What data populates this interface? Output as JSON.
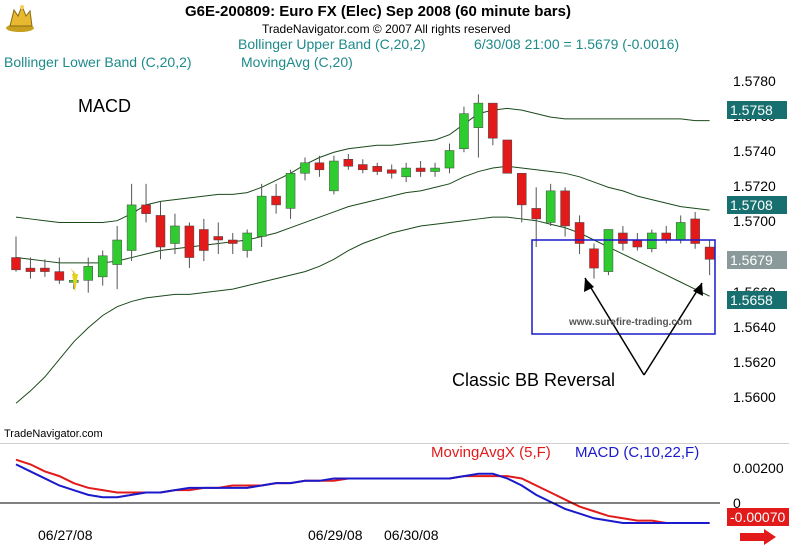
{
  "header": {
    "title": "G6E-200809:  Euro FX (Elec) Sep 2008  (60 minute bars)",
    "copyright": "TradeNavigator.com © 2007 All rights reserved",
    "upper_band_label": "Bollinger Upper Band (C,20,2)",
    "readout": "6/30/08 21:00 = 1.5679 (-0.0016)",
    "lower_band_label": "Bollinger Lower Band (C,20,2)",
    "ma_label": "MovingAvg (C,20)"
  },
  "annotations": {
    "macd_title": "MACD",
    "reversal_label": "Classic BB Reversal",
    "watermark": "www.surefire-trading.com",
    "brand": "TradeNavigator.com"
  },
  "price_tags": {
    "upper": "1.5758",
    "middle": "1.5708",
    "last": "1.5679",
    "lower": "1.5658"
  },
  "macd_panel": {
    "signal_label": "MovingAvgX (5,F)",
    "macd_label": "MACD (C,10,22,F)",
    "axis_top": "0.00200",
    "axis_zero": "0",
    "current_value": "-0.00070"
  },
  "colors": {
    "up": "#2ecc2e",
    "down": "#e21a1a",
    "band": "#1a4a1a",
    "box": "#1a1acc",
    "tag": "#176f6f",
    "signal": "#e21a1a",
    "macd": "#1a1acc"
  },
  "chart_data": {
    "type": "candlestick",
    "y_tick_labels": [
      "1.5780",
      "1.5760",
      "1.5740",
      "1.5720",
      "1.5700",
      "1.5680",
      "1.5660",
      "1.5640",
      "1.5620",
      "1.5600"
    ],
    "ylim": [
      1.5592,
      1.5788
    ],
    "x_tick_labels": [
      "06/27/08",
      "06/29/08",
      "06/30/08"
    ],
    "candles": [
      {
        "o": 1.568,
        "h": 1.5692,
        "l": 1.5672,
        "c": 1.5673
      },
      {
        "o": 1.5674,
        "h": 1.568,
        "l": 1.5668,
        "c": 1.5672
      },
      {
        "o": 1.5674,
        "h": 1.5679,
        "l": 1.5669,
        "c": 1.5672
      },
      {
        "o": 1.5672,
        "h": 1.568,
        "l": 1.5665,
        "c": 1.5667
      },
      {
        "o": 1.5666,
        "h": 1.5672,
        "l": 1.5662,
        "c": 1.5667
      },
      {
        "o": 1.5667,
        "h": 1.568,
        "l": 1.566,
        "c": 1.5675
      },
      {
        "o": 1.5669,
        "h": 1.5684,
        "l": 1.5664,
        "c": 1.5681
      },
      {
        "o": 1.5676,
        "h": 1.5698,
        "l": 1.5662,
        "c": 1.569
      },
      {
        "o": 1.5684,
        "h": 1.5722,
        "l": 1.5678,
        "c": 1.571
      },
      {
        "o": 1.571,
        "h": 1.5722,
        "l": 1.57,
        "c": 1.5705
      },
      {
        "o": 1.5704,
        "h": 1.5712,
        "l": 1.5679,
        "c": 1.5686
      },
      {
        "o": 1.5688,
        "h": 1.5705,
        "l": 1.5682,
        "c": 1.5698
      },
      {
        "o": 1.5698,
        "h": 1.57,
        "l": 1.5674,
        "c": 1.568
      },
      {
        "o": 1.5696,
        "h": 1.5702,
        "l": 1.5678,
        "c": 1.5684
      },
      {
        "o": 1.5692,
        "h": 1.57,
        "l": 1.5682,
        "c": 1.569
      },
      {
        "o": 1.569,
        "h": 1.5694,
        "l": 1.5682,
        "c": 1.5688
      },
      {
        "o": 1.5684,
        "h": 1.5696,
        "l": 1.568,
        "c": 1.5694
      },
      {
        "o": 1.5692,
        "h": 1.5722,
        "l": 1.5686,
        "c": 1.5715
      },
      {
        "o": 1.5715,
        "h": 1.5722,
        "l": 1.5705,
        "c": 1.571
      },
      {
        "o": 1.5708,
        "h": 1.573,
        "l": 1.5702,
        "c": 1.5728
      },
      {
        "o": 1.5728,
        "h": 1.5737,
        "l": 1.5724,
        "c": 1.5734
      },
      {
        "o": 1.5734,
        "h": 1.5738,
        "l": 1.5726,
        "c": 1.573
      },
      {
        "o": 1.5718,
        "h": 1.5738,
        "l": 1.5716,
        "c": 1.5735
      },
      {
        "o": 1.5736,
        "h": 1.5739,
        "l": 1.573,
        "c": 1.5732
      },
      {
        "o": 1.5733,
        "h": 1.5736,
        "l": 1.5728,
        "c": 1.573
      },
      {
        "o": 1.5732,
        "h": 1.5734,
        "l": 1.5727,
        "c": 1.5729
      },
      {
        "o": 1.573,
        "h": 1.5733,
        "l": 1.5725,
        "c": 1.5728
      },
      {
        "o": 1.5726,
        "h": 1.5734,
        "l": 1.5723,
        "c": 1.5731
      },
      {
        "o": 1.5731,
        "h": 1.5735,
        "l": 1.5726,
        "c": 1.5729
      },
      {
        "o": 1.5729,
        "h": 1.5734,
        "l": 1.5726,
        "c": 1.5731
      },
      {
        "o": 1.5731,
        "h": 1.5745,
        "l": 1.5728,
        "c": 1.5741
      },
      {
        "o": 1.5742,
        "h": 1.5766,
        "l": 1.574,
        "c": 1.5762
      },
      {
        "o": 1.5754,
        "h": 1.5773,
        "l": 1.5737,
        "c": 1.5768
      },
      {
        "o": 1.5768,
        "h": 1.5768,
        "l": 1.5744,
        "c": 1.5748
      },
      {
        "o": 1.5747,
        "h": 1.5747,
        "l": 1.5728,
        "c": 1.5728
      },
      {
        "o": 1.5728,
        "h": 1.5728,
        "l": 1.57,
        "c": 1.571
      },
      {
        "o": 1.5708,
        "h": 1.572,
        "l": 1.5686,
        "c": 1.5702
      },
      {
        "o": 1.57,
        "h": 1.5722,
        "l": 1.5698,
        "c": 1.5718
      },
      {
        "o": 1.5718,
        "h": 1.572,
        "l": 1.5692,
        "c": 1.5698
      },
      {
        "o": 1.57,
        "h": 1.5704,
        "l": 1.5682,
        "c": 1.5688
      },
      {
        "o": 1.5685,
        "h": 1.5688,
        "l": 1.5668,
        "c": 1.5674
      },
      {
        "o": 1.5672,
        "h": 1.5696,
        "l": 1.567,
        "c": 1.5696
      },
      {
        "o": 1.5694,
        "h": 1.5698,
        "l": 1.5684,
        "c": 1.5688
      },
      {
        "o": 1.569,
        "h": 1.5694,
        "l": 1.5684,
        "c": 1.5686
      },
      {
        "o": 1.5685,
        "h": 1.5696,
        "l": 1.5683,
        "c": 1.5694
      },
      {
        "o": 1.5694,
        "h": 1.5698,
        "l": 1.5688,
        "c": 1.569
      },
      {
        "o": 1.569,
        "h": 1.5704,
        "l": 1.5688,
        "c": 1.57
      },
      {
        "o": 1.5702,
        "h": 1.5706,
        "l": 1.5685,
        "c": 1.5688
      },
      {
        "o": 1.5686,
        "h": 1.569,
        "l": 1.567,
        "c": 1.5679
      }
    ],
    "upper_band": [
      1.5703,
      1.5702,
      1.5701,
      1.57,
      1.57,
      1.57,
      1.57,
      1.5701,
      1.5705,
      1.571,
      1.5712,
      1.5713,
      1.5714,
      1.5715,
      1.5716,
      1.5716,
      1.5717,
      1.572,
      1.5724,
      1.5728,
      1.5733,
      1.5737,
      1.574,
      1.5742,
      1.5743,
      1.5744,
      1.5744,
      1.5745,
      1.5746,
      1.5747,
      1.575,
      1.5756,
      1.5762,
      1.5764,
      1.5765,
      1.5764,
      1.5762,
      1.576,
      1.5759,
      1.5759,
      1.5759,
      1.5759,
      1.5759,
      1.5759,
      1.5759,
      1.5759,
      1.5759,
      1.5758,
      1.5758
    ],
    "middle_band": [
      1.568,
      1.5679,
      1.5678,
      1.5677,
      1.5677,
      1.5677,
      1.5677,
      1.5678,
      1.568,
      1.5682,
      1.5684,
      1.5685,
      1.5686,
      1.5687,
      1.5688,
      1.5689,
      1.569,
      1.5692,
      1.5694,
      1.5697,
      1.57,
      1.5703,
      1.5706,
      1.5709,
      1.5711,
      1.5713,
      1.5715,
      1.5717,
      1.5718,
      1.572,
      1.5722,
      1.5726,
      1.5729,
      1.5731,
      1.5732,
      1.5731,
      1.573,
      1.5729,
      1.5728,
      1.5726,
      1.5723,
      1.572,
      1.5718,
      1.5715,
      1.5713,
      1.5711,
      1.5709,
      1.5708,
      1.5707
    ],
    "lower_band": [
      1.5597,
      1.5604,
      1.5612,
      1.5622,
      1.5632,
      1.564,
      1.5647,
      1.5652,
      1.5655,
      1.5657,
      1.5658,
      1.5659,
      1.5659,
      1.566,
      1.5661,
      1.5662,
      1.5664,
      1.5666,
      1.5668,
      1.567,
      1.5672,
      1.5675,
      1.5679,
      1.5684,
      1.5688,
      1.5691,
      1.5694,
      1.5696,
      1.5698,
      1.5699,
      1.57,
      1.5701,
      1.5702,
      1.5703,
      1.5703,
      1.5702,
      1.5701,
      1.5699,
      1.5697,
      1.5694,
      1.569,
      1.5686,
      1.5682,
      1.5678,
      1.5674,
      1.567,
      1.5666,
      1.5662,
      1.5658
    ],
    "macd_ylim": [
      -0.001,
      0.0025
    ],
    "macd": [
      0.0018,
      0.0015,
      0.0012,
      0.0009,
      0.0007,
      0.0005,
      0.0004,
      0.0004,
      0.0005,
      0.0006,
      0.0006,
      0.0007,
      0.0008,
      0.0008,
      0.0008,
      0.0008,
      0.0008,
      0.0009,
      0.001,
      0.001,
      0.0011,
      0.0011,
      0.0012,
      0.0012,
      0.0012,
      0.0012,
      0.0012,
      0.0012,
      0.0012,
      0.0012,
      0.0012,
      0.0013,
      0.0014,
      0.0014,
      0.0012,
      0.0009,
      0.0005,
      0.0002,
      -0.0001,
      -0.0003,
      -0.0005,
      -0.0006,
      -0.0007,
      -0.0007,
      -0.0007,
      -0.0007,
      -0.0007,
      -0.0007,
      -0.0007
    ],
    "signal": [
      0.002,
      0.0018,
      0.0015,
      0.0013,
      0.001,
      0.0008,
      0.0007,
      0.0006,
      0.0006,
      0.0006,
      0.0006,
      0.0007,
      0.0007,
      0.0008,
      0.0008,
      0.0009,
      0.0009,
      0.0009,
      0.001,
      0.001,
      0.0011,
      0.0011,
      0.0011,
      0.0012,
      0.0012,
      0.0012,
      0.0012,
      0.0012,
      0.0012,
      0.0012,
      0.0012,
      0.0013,
      0.0013,
      0.0013,
      0.0013,
      0.0012,
      0.0009,
      0.0006,
      0.0003,
      0.0,
      -0.0002,
      -0.0004,
      -0.0005,
      -0.0006,
      -0.0006,
      -0.0007,
      -0.0007,
      -0.0007,
      -0.0007
    ]
  }
}
